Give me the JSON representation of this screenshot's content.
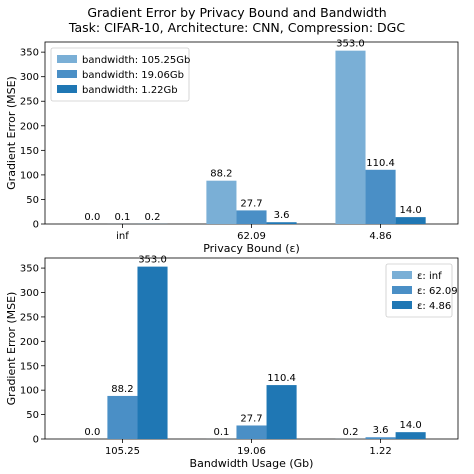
{
  "figure": {
    "title_line1": "Gradient Error by Privacy Bound and Bandwidth",
    "title_line2": "Task: CIFAR-10, Architecture: CNN, Compression: DGC"
  },
  "colors": {
    "light": "#7aafd6",
    "medium": "#4a8fc6",
    "dark": "#1f77b4"
  },
  "chart_data": [
    {
      "type": "bar",
      "categories": [
        "inf",
        "62.09",
        "4.86"
      ],
      "series": [
        {
          "name": "bandwidth: 105.25Gb",
          "values": [
            0.0,
            88.2,
            353.0
          ],
          "labels": [
            "0.0",
            "88.2",
            "353.0"
          ],
          "color": "#7aafd6"
        },
        {
          "name": "bandwidth: 19.06Gb",
          "values": [
            0.1,
            27.7,
            110.4
          ],
          "labels": [
            "0.1",
            "27.7",
            "110.4"
          ],
          "color": "#4a8fc6"
        },
        {
          "name": "bandwidth: 1.22Gb",
          "values": [
            0.2,
            3.6,
            14.0
          ],
          "labels": [
            "0.2",
            "3.6",
            "14.0"
          ],
          "color": "#1f77b4"
        }
      ],
      "xlabel": "Privacy Bound (ε)",
      "ylabel": "Gradient Error (MSE)",
      "yticks": [
        0,
        50,
        100,
        150,
        200,
        250,
        300,
        350
      ],
      "ylim": [
        0,
        370.65
      ],
      "legend_position": "top-left",
      "grid": false
    },
    {
      "type": "bar",
      "categories": [
        "105.25",
        "19.06",
        "1.22"
      ],
      "series": [
        {
          "name": "ε: inf",
          "values": [
            0.0,
            0.1,
            0.2
          ],
          "labels": [
            "0.0",
            "0.1",
            "0.2"
          ],
          "color": "#7aafd6"
        },
        {
          "name": "ε: 62.09",
          "values": [
            88.2,
            27.7,
            3.6
          ],
          "labels": [
            "88.2",
            "27.7",
            "3.6"
          ],
          "color": "#4a8fc6"
        },
        {
          "name": "ε: 4.86",
          "values": [
            353.0,
            110.4,
            14.0
          ],
          "labels": [
            "353.0",
            "110.4",
            "14.0"
          ],
          "color": "#1f77b4"
        }
      ],
      "xlabel": "Bandwidth Usage (Gb)",
      "ylabel": "Gradient Error (MSE)",
      "yticks": [
        0,
        50,
        100,
        150,
        200,
        250,
        300,
        350
      ],
      "ylim": [
        0,
        370.65
      ],
      "legend_position": "top-right",
      "grid": false
    }
  ]
}
